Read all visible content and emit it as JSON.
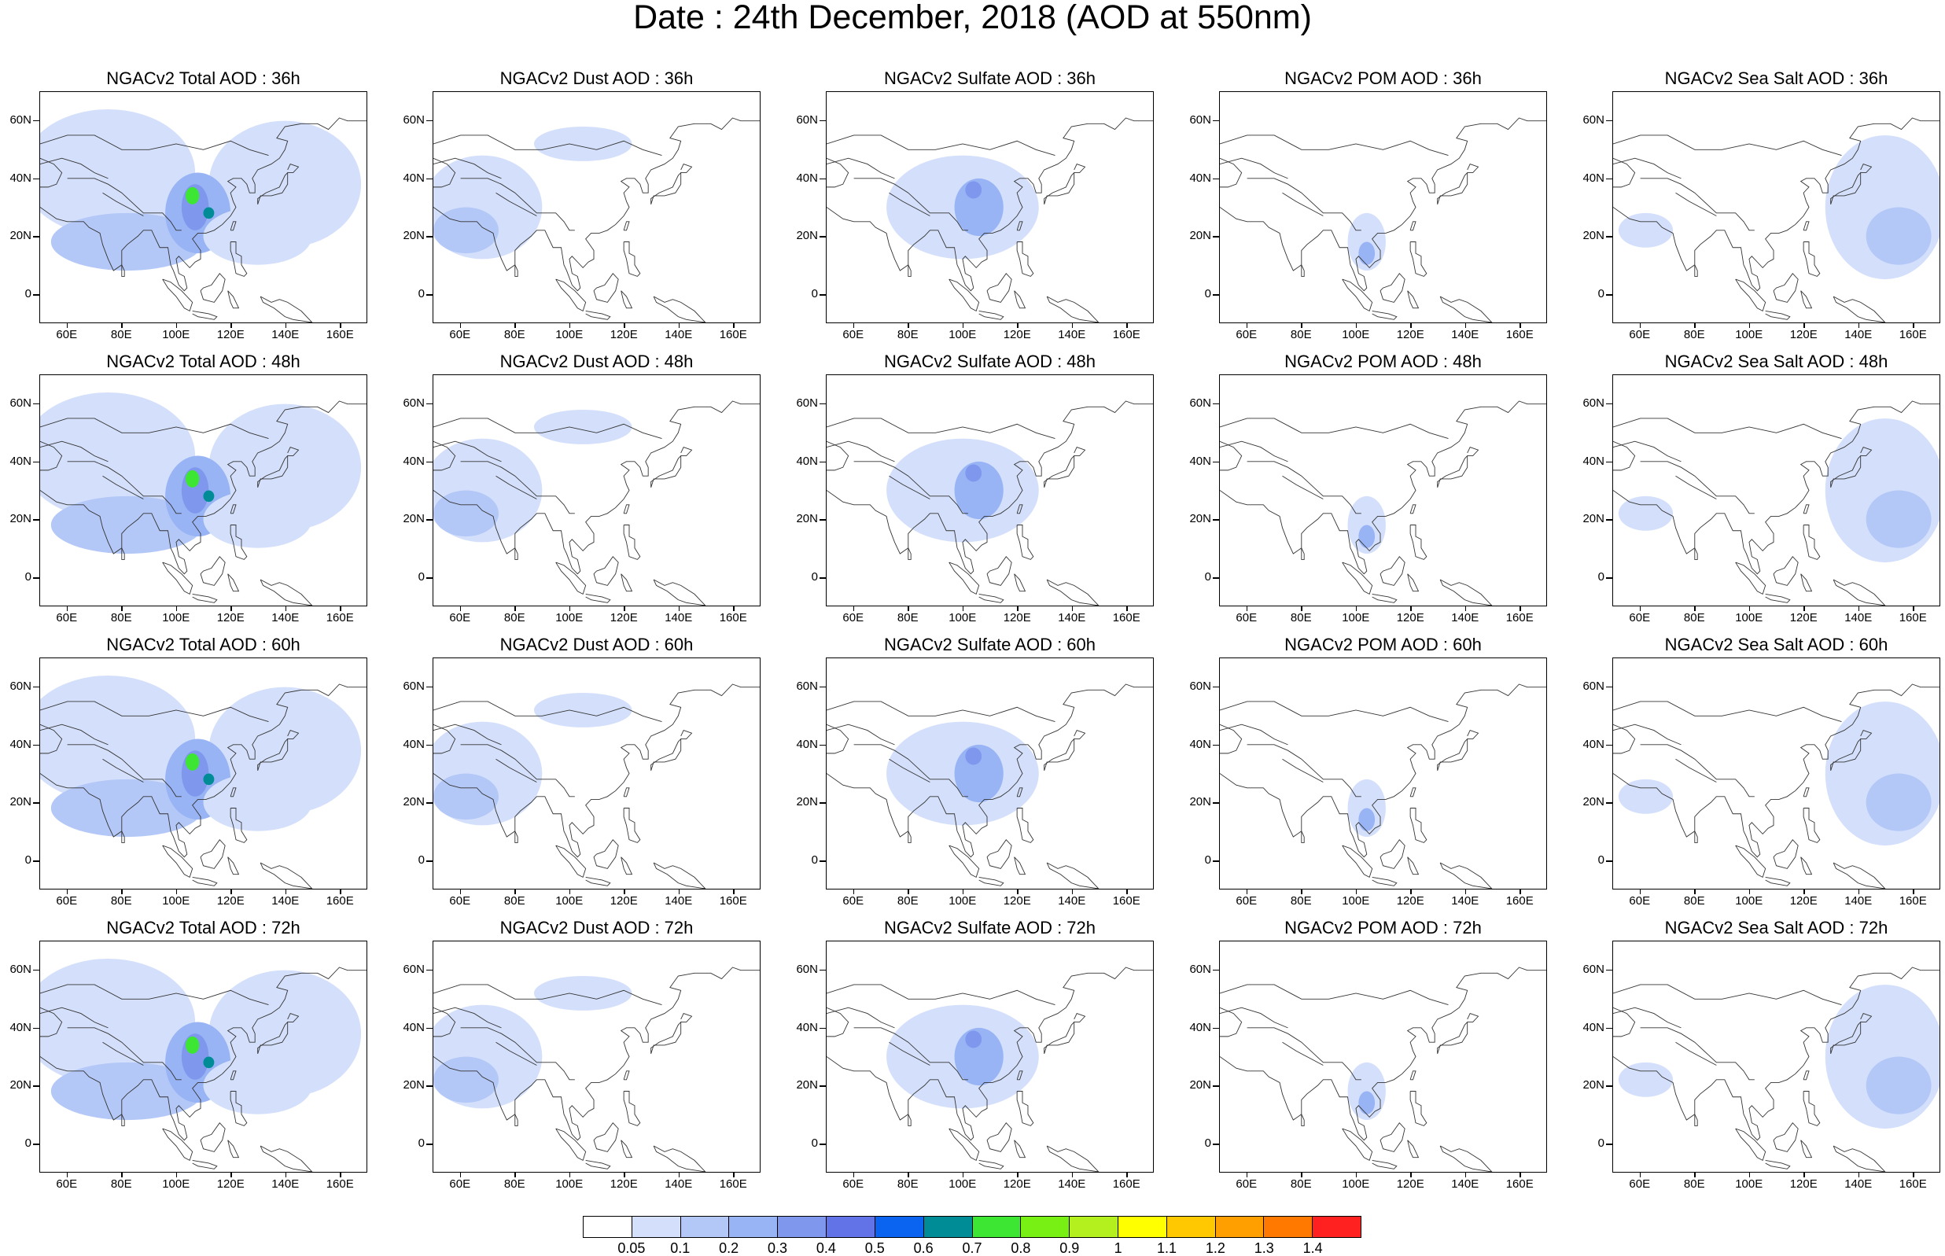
{
  "figure": {
    "title": "Date : 24th December, 2018 (AOD at 550nm)"
  },
  "panel_titles": [
    [
      "NGACv2 Total AOD : 36h",
      "NGACv2 Dust AOD : 36h",
      "NGACv2 Sulfate AOD : 36h",
      "NGACv2 POM AOD : 36h",
      "NGACv2 Sea Salt AOD : 36h"
    ],
    [
      "NGACv2 Total AOD : 48h",
      "NGACv2 Dust AOD : 48h",
      "NGACv2 Sulfate AOD : 48h",
      "NGACv2 POM AOD : 48h",
      "NGACv2 Sea Salt AOD : 48h"
    ],
    [
      "NGACv2 Total AOD : 60h",
      "NGACv2 Dust AOD : 60h",
      "NGACv2 Sulfate AOD : 60h",
      "NGACv2 POM AOD : 60h",
      "NGACv2 Sea Salt AOD : 60h"
    ],
    [
      "NGACv2 Total AOD : 72h",
      "NGACv2 Dust AOD : 72h",
      "NGACv2 Sulfate AOD : 72h",
      "NGACv2 POM AOD : 72h",
      "NGACv2 Sea Salt  AOD : 72h"
    ]
  ],
  "axes": {
    "lon_range": [
      50,
      170
    ],
    "lat_range": [
      -10,
      70
    ],
    "x_ticks": [
      {
        "value": 60,
        "label": "60E"
      },
      {
        "value": 80,
        "label": "80E"
      },
      {
        "value": 100,
        "label": "100E"
      },
      {
        "value": 120,
        "label": "120E"
      },
      {
        "value": 140,
        "label": "140E"
      },
      {
        "value": 160,
        "label": "160E"
      }
    ],
    "y_ticks": [
      {
        "value": 60,
        "label": "60N"
      },
      {
        "value": 40,
        "label": "40N"
      },
      {
        "value": 20,
        "label": "20N"
      },
      {
        "value": 0,
        "label": "0"
      }
    ]
  },
  "colorbar": {
    "colors": [
      "#ffffff",
      "#d4e0fb",
      "#b4c8f8",
      "#98b4f4",
      "#7f98ee",
      "#6273e8",
      "#0a64f0",
      "#008c96",
      "#3ce632",
      "#78f014",
      "#b4f01e",
      "#ffff00",
      "#ffc800",
      "#ffa000",
      "#ff7800",
      "#ff2020"
    ],
    "labels": [
      "0.05",
      "0.1",
      "0.2",
      "0.3",
      "0.4",
      "0.5",
      "0.6",
      "0.7",
      "0.8",
      "0.9",
      "1",
      "1.1",
      "1.2",
      "1.3",
      "1.4"
    ]
  },
  "fields": {
    "total": [
      {
        "lon": 75,
        "lat": 42,
        "rx": 32,
        "ry": 22,
        "level": 1
      },
      {
        "lon": 140,
        "lat": 38,
        "rx": 28,
        "ry": 22,
        "level": 1
      },
      {
        "lon": 82,
        "lat": 18,
        "rx": 28,
        "ry": 10,
        "level": 2
      },
      {
        "lon": 108,
        "lat": 28,
        "rx": 12,
        "ry": 14,
        "level": 3
      },
      {
        "lon": 107,
        "lat": 30,
        "rx": 5,
        "ry": 8,
        "level": 4
      },
      {
        "lon": 106,
        "lat": 34,
        "rx": 2.5,
        "ry": 3,
        "level": 8
      },
      {
        "lon": 112,
        "lat": 28,
        "rx": 2,
        "ry": 2,
        "level": 7
      },
      {
        "lon": 130,
        "lat": 20,
        "rx": 20,
        "ry": 10,
        "level": 1
      }
    ],
    "dust": [
      {
        "lon": 68,
        "lat": 30,
        "rx": 22,
        "ry": 18,
        "level": 1
      },
      {
        "lon": 62,
        "lat": 22,
        "rx": 12,
        "ry": 8,
        "level": 2
      },
      {
        "lon": 105,
        "lat": 52,
        "rx": 18,
        "ry": 6,
        "level": 1
      }
    ],
    "sulfate": [
      {
        "lon": 100,
        "lat": 30,
        "rx": 28,
        "ry": 18,
        "level": 1
      },
      {
        "lon": 106,
        "lat": 30,
        "rx": 9,
        "ry": 10,
        "level": 3
      },
      {
        "lon": 104,
        "lat": 36,
        "rx": 3,
        "ry": 3,
        "level": 4
      }
    ],
    "pom": [
      {
        "lon": 104,
        "lat": 18,
        "rx": 7,
        "ry": 10,
        "level": 1
      },
      {
        "lon": 104,
        "lat": 14,
        "rx": 3,
        "ry": 4,
        "level": 3
      }
    ],
    "seasalt": [
      {
        "lon": 150,
        "lat": 30,
        "rx": 22,
        "ry": 25,
        "level": 1
      },
      {
        "lon": 155,
        "lat": 20,
        "rx": 12,
        "ry": 10,
        "level": 2
      },
      {
        "lon": 62,
        "lat": 22,
        "rx": 10,
        "ry": 6,
        "level": 1
      }
    ]
  }
}
